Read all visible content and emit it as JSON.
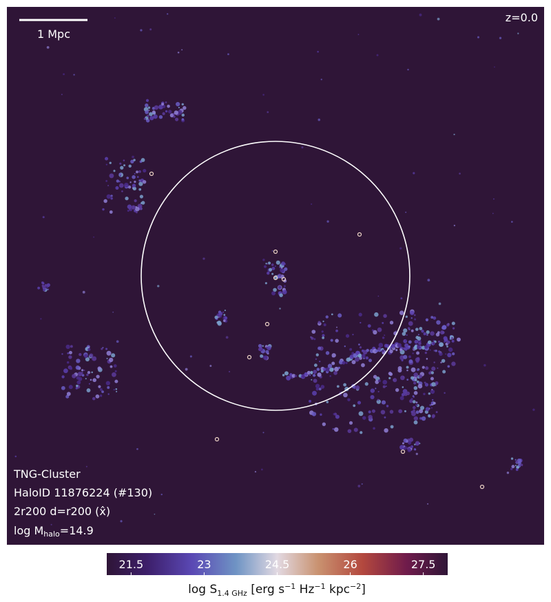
{
  "image": {
    "scale_bar_label": "1 Mpc",
    "redshift": "z=0.0",
    "annotations": [
      "TNG-Cluster",
      "HaloID 11876224 (#130)",
      "2r200 d=r200 (x̂)"
    ],
    "mass_label": {
      "prefix": "log M",
      "subscript": "halo",
      "suffix": "=14.9"
    }
  },
  "colorbar": {
    "clim": [
      21.0,
      28.0
    ],
    "ticks": [
      21.5,
      23.0,
      24.5,
      26.0,
      27.5
    ],
    "label": {
      "parts": [
        "log S",
        "1.4 GHz",
        " [erg s",
        "−1",
        " Hz",
        "−1",
        " kpc",
        "−2",
        "]"
      ]
    }
  }
}
